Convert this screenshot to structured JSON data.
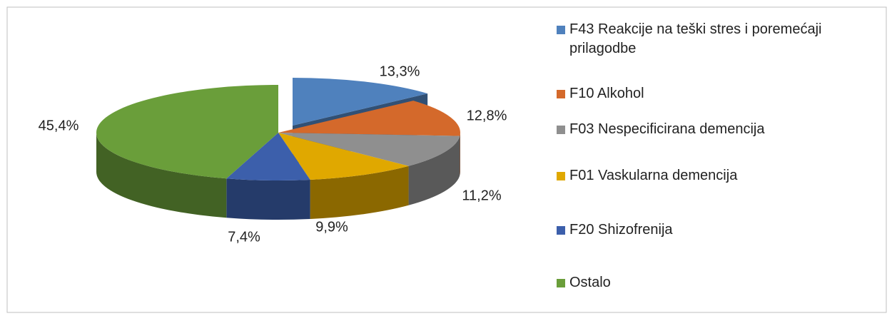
{
  "chart_data": {
    "type": "pie3d",
    "categories": [
      "F43 Reakcije na teški stres i poremećaji prilagodbe",
      "F10 Alkohol",
      "F03 Nespecificirana demencija",
      "F01 Vaskularna demencija",
      "F20 Shizofrenija",
      "Ostalo"
    ],
    "values": [
      13.3,
      12.8,
      11.2,
      9.9,
      7.4,
      45.4
    ],
    "value_labels": [
      "13,3%",
      "12,8%",
      "11,2%",
      "9,9%",
      "7,4%",
      "45,4%"
    ],
    "colors": [
      "#4f81bd",
      "#d4692b",
      "#8f8f8f",
      "#e0a800",
      "#3c5fab",
      "#6a9e3a"
    ],
    "legend": "right"
  }
}
